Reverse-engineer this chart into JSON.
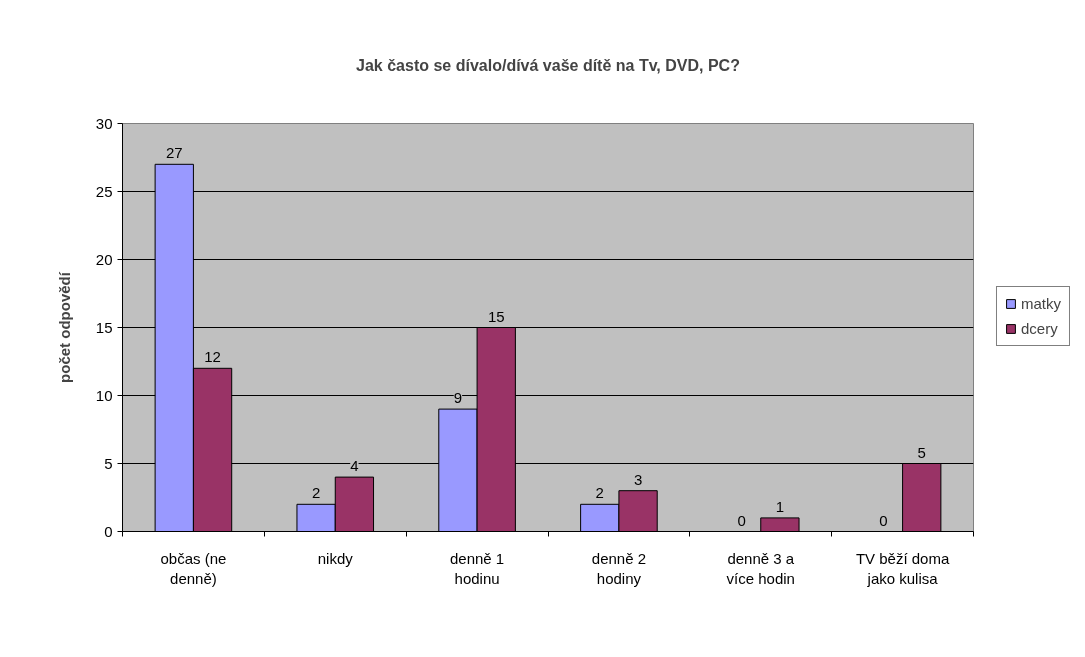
{
  "chart_data": {
    "type": "bar",
    "title": "Jak často se dívalo/dívá vaše dítě na Tv, DVD, PC?",
    "ylabel": "počet odpovědí",
    "categories": [
      "občas (ne denně)",
      "nikdy",
      "denně 1 hodinu",
      "denně 2 hodiny",
      "denně 3 a více hodin",
      "TV běží doma jako kulisa"
    ],
    "series": [
      {
        "name": "matky",
        "color": "#9999ff",
        "values": [
          27,
          2,
          9,
          2,
          0,
          0
        ]
      },
      {
        "name": "dcery",
        "color": "#993366",
        "values": [
          12,
          4,
          15,
          3,
          1,
          5
        ]
      }
    ],
    "ylim": [
      0,
      30
    ],
    "yticks": [
      0,
      5,
      10,
      15,
      20,
      25,
      30
    ],
    "grid": "y",
    "legend": "right",
    "data_labels": true
  }
}
